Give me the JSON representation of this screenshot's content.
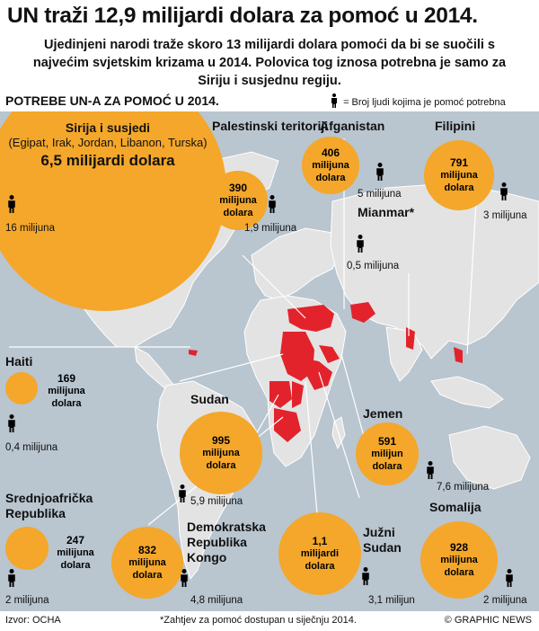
{
  "title": "UN traži 12,9 milijardi dolara za pomoć u 2014.",
  "subtitle": "Ujedinjeni narodi traže skoro 13 milijardi dolara pomoći da bi se suočili s najvećim svjetskim krizama u 2014. Polovica tog iznosa potrebna je samo za Siriju i susjednu regiju.",
  "section_label": "POTREBE UN-A ZA POMOĆ U 2014.",
  "legend_text": "= Broj ljudi kojima je pomoć potrebna",
  "icon_person": "person-icon",
  "colors": {
    "bubble": "#f4a72a",
    "crisis": "#e2232b",
    "sea": "#b9c5cf",
    "land": "#e3e3e3"
  },
  "regions": {
    "syria": {
      "name": "Sirija i susjedi",
      "countries": "(Egipat, Irak, Jordan, Libanon, Turska)",
      "amount": "6,5 milijardi dolara",
      "people": "16 milijuna"
    },
    "palestine": {
      "name": "Palestinski teritoriji",
      "amount_value": "390",
      "amount_unit": "milijuna",
      "amount_currency": "dolara",
      "people": "1,9 milijuna"
    },
    "afghanistan": {
      "name": "Afganistan",
      "amount_value": "406",
      "amount_unit": "milijuna",
      "amount_currency": "dolara",
      "people": "5 milijuna"
    },
    "philippines": {
      "name": "Filipini",
      "amount_value": "791",
      "amount_unit": "milijuna",
      "amount_currency": "dolara",
      "people": "3 milijuna"
    },
    "myanmar": {
      "name": "Mianmar*",
      "people": "0,5 milijuna"
    },
    "haiti": {
      "name": "Haiti",
      "amount_value": "169",
      "amount_unit": "milijuna",
      "amount_currency": "dolara",
      "people": "0,4 milijuna"
    },
    "sudan": {
      "name": "Sudan",
      "amount_value": "995",
      "amount_unit": "milijuna",
      "amount_currency": "dolara",
      "people": "5,9 milijuna"
    },
    "yemen": {
      "name": "Jemen",
      "amount_value": "591",
      "amount_unit": "milijun",
      "amount_currency": "dolara",
      "people": "7,6 milijuna"
    },
    "car": {
      "name": "Srednjoafrička Republika",
      "amount_value": "247",
      "amount_unit": "milijuna",
      "amount_currency": "dolara",
      "people": "2 milijuna"
    },
    "drc": {
      "name": "Demokratska Republika Kongo",
      "amount_value": "832",
      "amount_unit": "milijuna",
      "amount_currency": "dolara",
      "people": "4,8 milijuna"
    },
    "south_sudan": {
      "name": "Južni Sudan",
      "amount_value": "1,1",
      "amount_unit": "milijardi",
      "amount_currency": "dolara",
      "people": "3,1 milijun"
    },
    "somalia": {
      "name": "Somalija",
      "amount_value": "928",
      "amount_unit": "milijuna",
      "amount_currency": "dolara",
      "people": "2 milijuna"
    }
  },
  "footer": {
    "source": "Izvor: OCHA",
    "note": "*Zahtjev za pomoć dostupan u siječnju 2014.",
    "credit": "© GRAPHIC NEWS"
  }
}
